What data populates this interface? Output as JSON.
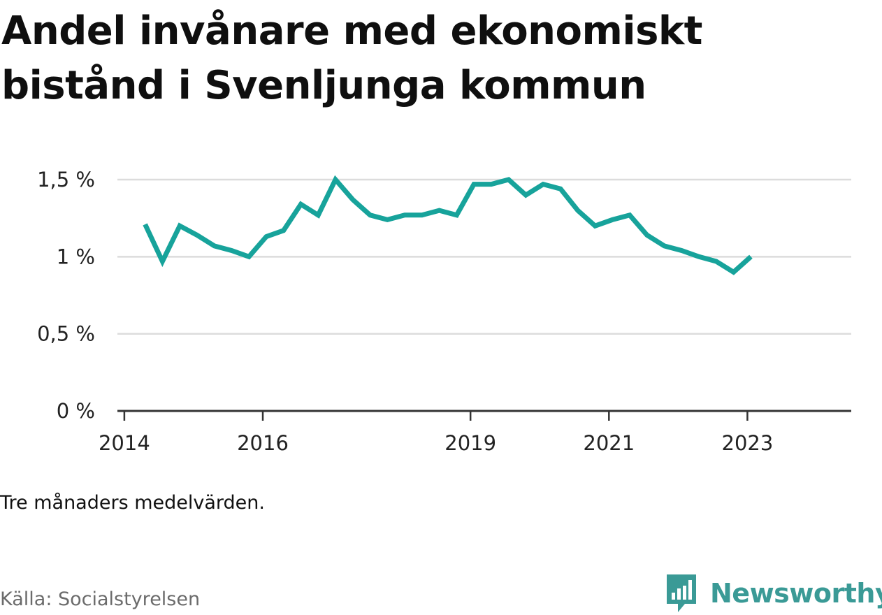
{
  "title": "Andel invånare med ekonomiskt bistånd i Svenljunga kommun",
  "note": "Tre månaders medelvärden.",
  "source": "Källa: Socialstyrelsen",
  "brand": "Newsworthy",
  "colors": {
    "line": "#17a39b",
    "grid": "#dcdcdc",
    "axis": "#333333",
    "brand": "#3a9a96"
  },
  "chart_data": {
    "type": "line",
    "title": "Andel invånare med ekonomiskt bistånd i Svenljunga kommun",
    "xlabel": "",
    "ylabel": "",
    "y_ticks": [
      {
        "value": 0,
        "label": "0 %"
      },
      {
        "value": 0.5,
        "label": "0,5 %"
      },
      {
        "value": 1,
        "label": "1 %"
      },
      {
        "value": 1.5,
        "label": "1,5 %"
      }
    ],
    "x_ticks": [
      {
        "value": 2014,
        "label": "2014"
      },
      {
        "value": 2016,
        "label": "2016"
      },
      {
        "value": 2019,
        "label": "2019"
      },
      {
        "value": 2021,
        "label": "2021"
      },
      {
        "value": 2023,
        "label": "2023"
      }
    ],
    "xlim": [
      2013.9,
      2024.5
    ],
    "ylim": [
      0,
      1.5
    ],
    "grid": true,
    "legend": "none",
    "series": [
      {
        "points": [
          [
            2014.3,
            1.21
          ],
          [
            2014.55,
            0.97
          ],
          [
            2014.8,
            1.2
          ],
          [
            2015.05,
            1.14
          ],
          [
            2015.3,
            1.07
          ],
          [
            2015.55,
            1.04
          ],
          [
            2015.8,
            1.0
          ],
          [
            2016.05,
            1.13
          ],
          [
            2016.3,
            1.17
          ],
          [
            2016.55,
            1.34
          ],
          [
            2016.8,
            1.27
          ],
          [
            2017.05,
            1.5
          ],
          [
            2017.3,
            1.37
          ],
          [
            2017.55,
            1.27
          ],
          [
            2017.8,
            1.24
          ],
          [
            2018.05,
            1.27
          ],
          [
            2018.3,
            1.27
          ],
          [
            2018.55,
            1.3
          ],
          [
            2018.8,
            1.27
          ],
          [
            2019.05,
            1.47
          ],
          [
            2019.3,
            1.47
          ],
          [
            2019.55,
            1.5
          ],
          [
            2019.8,
            1.4
          ],
          [
            2020.05,
            1.47
          ],
          [
            2020.3,
            1.44
          ],
          [
            2020.55,
            1.3
          ],
          [
            2020.8,
            1.2
          ],
          [
            2021.05,
            1.24
          ],
          [
            2021.3,
            1.27
          ],
          [
            2021.55,
            1.14
          ],
          [
            2021.8,
            1.07
          ],
          [
            2022.05,
            1.04
          ],
          [
            2022.3,
            1.0
          ],
          [
            2022.55,
            0.97
          ],
          [
            2022.8,
            0.9
          ],
          [
            2023.05,
            1.0
          ]
        ]
      }
    ]
  }
}
